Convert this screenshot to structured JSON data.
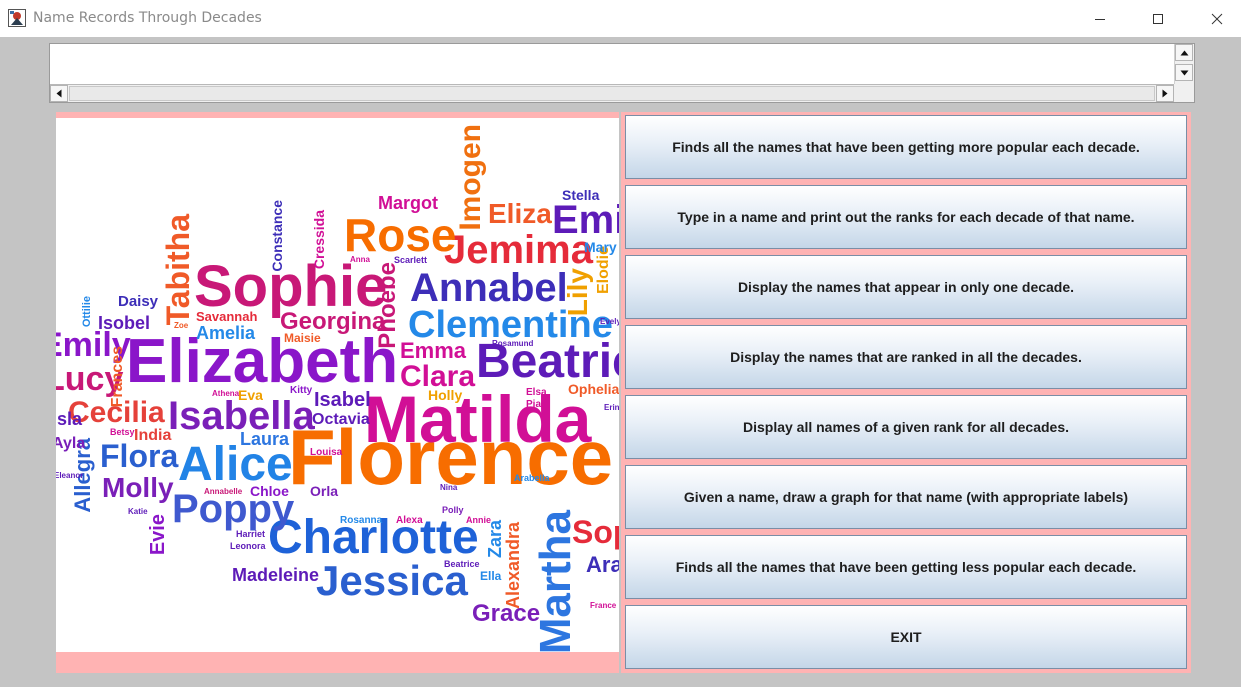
{
  "window": {
    "title": "Name Records Through Decades",
    "app_icon": "java-app-icon",
    "controls": [
      "minimize-icon",
      "maximize-icon",
      "close-icon"
    ]
  },
  "output_area": {
    "value": ""
  },
  "word_cloud": {
    "words": [
      "Florence",
      "Matilda",
      "Elizabeth",
      "Sophie",
      "Charlotte",
      "Alice",
      "Isabella",
      "Jessica",
      "Beatrice",
      "Clementine",
      "Annabel",
      "Jemima",
      "Rose",
      "Poppy",
      "Cecilia",
      "Martha",
      "Imogen",
      "Eliza",
      "Emily",
      "Lucy",
      "Clara",
      "Emma",
      "Flora",
      "Molly",
      "Tabitha",
      "Grace",
      "Madeleine",
      "Georgina",
      "Phoebe",
      "Lily",
      "Margot",
      "Amelia",
      "Isobel",
      "Daisy",
      "Laura",
      "India",
      "Allegra",
      "Evie",
      "Octavia",
      "Isabel",
      "Constance",
      "Cressida",
      "Savannah",
      "Maisie",
      "Frances",
      "Zara",
      "Alexandra",
      "Elodie",
      "Mary",
      "Stella",
      "Chloe",
      "Orla",
      "Rosanna",
      "Alexa",
      "Ella",
      "Beatrice",
      "Holly",
      "Ophelia",
      "Eva",
      "Kitty",
      "Louisa",
      "Betsy",
      "Athena",
      "Annie",
      "Polly",
      "Harriet",
      "Leonora",
      "Katie",
      "Annabelle",
      "Scarlett",
      "Anna",
      "Zoe",
      "Ottilie",
      "Rosamund",
      "Nina",
      "Arabella",
      "Sophia",
      "France",
      "Evelyn",
      "Erin",
      "Emi",
      "Elsa",
      "Pia",
      "Isla",
      "Ayla",
      "Eleanor",
      "Ara"
    ]
  },
  "buttons": [
    {
      "label": "Finds all the names that have been getting more popular each decade."
    },
    {
      "label": "Type in a name and print out the ranks for each decade of that name."
    },
    {
      "label": "Display the names that appear in only one decade."
    },
    {
      "label": "Display the names that are ranked in all the decades."
    },
    {
      "label": "Display all names of a given rank for all decades."
    },
    {
      "label": "Given a name, draw a graph for that name (with appropriate labels)"
    },
    {
      "label": "Finds all the names that have been getting less popular each decade."
    },
    {
      "label": "EXIT"
    }
  ]
}
